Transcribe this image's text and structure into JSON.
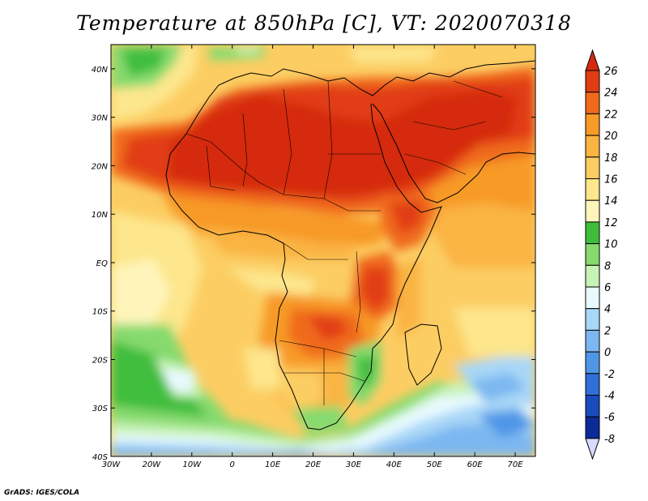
{
  "title": "Temperature at 850hPa [C], VT: 2020070318",
  "credit": "GrADS: IGES/COLA",
  "map": {
    "region": "Africa",
    "variable": "Temperature at 850hPa",
    "units": "C",
    "lon_range": [
      -30,
      75
    ],
    "lat_range": [
      -40,
      45
    ],
    "x_ticks": [
      {
        "lon": -30,
        "label": "30W"
      },
      {
        "lon": -20,
        "label": "20W"
      },
      {
        "lon": -10,
        "label": "10W"
      },
      {
        "lon": 0,
        "label": "0"
      },
      {
        "lon": 10,
        "label": "10E"
      },
      {
        "lon": 20,
        "label": "20E"
      },
      {
        "lon": 30,
        "label": "30E"
      },
      {
        "lon": 40,
        "label": "40E"
      },
      {
        "lon": 50,
        "label": "50E"
      },
      {
        "lon": 60,
        "label": "60E"
      },
      {
        "lon": 70,
        "label": "70E"
      }
    ],
    "y_ticks": [
      {
        "lat": 40,
        "label": "40N"
      },
      {
        "lat": 30,
        "label": "30N"
      },
      {
        "lat": 20,
        "label": "20N"
      },
      {
        "lat": 10,
        "label": "10N"
      },
      {
        "lat": 0,
        "label": "EQ"
      },
      {
        "lat": -10,
        "label": "10S"
      },
      {
        "lat": -20,
        "label": "20S"
      },
      {
        "lat": -30,
        "label": "30S"
      },
      {
        "lat": -40,
        "label": "40S"
      }
    ]
  },
  "colorbar": {
    "levels": [
      26,
      24,
      22,
      20,
      18,
      16,
      14,
      12,
      10,
      8,
      6,
      4,
      2,
      0,
      -2,
      -4,
      -6,
      -8
    ],
    "colors": {
      "above_26": "#d52a10",
      "24_26": "#e13d15",
      "22_24": "#f06a1c",
      "20_22": "#f79a28",
      "18_20": "#fab442",
      "16_18": "#fccd62",
      "14_16": "#fde68c",
      "12_14": "#fff5bb",
      "10_12": "#3fbe3c",
      "8_10": "#86da6e",
      "6_8": "#c8f3b6",
      "4_6": "#e8faff",
      "2_4": "#a9d7f7",
      "0_2": "#7cb7f1",
      "m2_0": "#4f96e7",
      "m4_m2": "#2f70d8",
      "m6_m4": "#1b4cbd",
      "m8_m6": "#0d2b98",
      "below_m8": "#d6dbff"
    }
  }
}
